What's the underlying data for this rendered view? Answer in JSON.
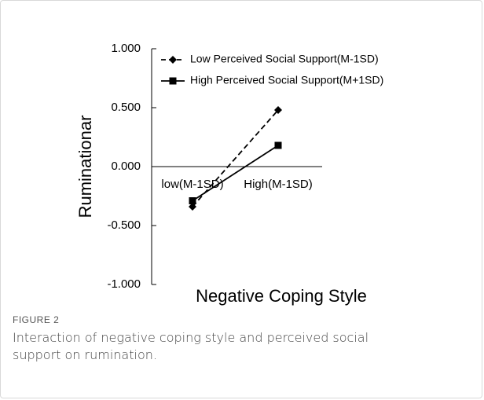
{
  "chart_data": {
    "type": "line",
    "y_label": "Ruminationar",
    "x_label": "Negative Coping Style",
    "categories": [
      "low(M-1SD)",
      "High(M-1SD)"
    ],
    "series": [
      {
        "name": "Low Perceived Social Support(M-1SD)",
        "color": "#000000",
        "line_style": "dashed",
        "marker": "diamond",
        "values": [
          -0.34,
          0.48
        ]
      },
      {
        "name": "High Perceived Social Support(M+1SD)",
        "color": "#000000",
        "line_style": "solid",
        "marker": "square",
        "values": [
          -0.29,
          0.18
        ]
      }
    ],
    "ylim": [
      -1,
      1
    ],
    "yticks": [
      {
        "value": 1,
        "label": "1.000"
      },
      {
        "value": 0.5,
        "label": "0.500"
      },
      {
        "value": 0,
        "label": "0.000"
      },
      {
        "value": -0.5,
        "label": "-0.500"
      },
      {
        "value": -1,
        "label": "-1.000"
      }
    ],
    "legend": "top"
  },
  "figure": {
    "label": "FIGURE 2",
    "caption": "Interaction of negative coping style and perceived social support on rumination."
  }
}
